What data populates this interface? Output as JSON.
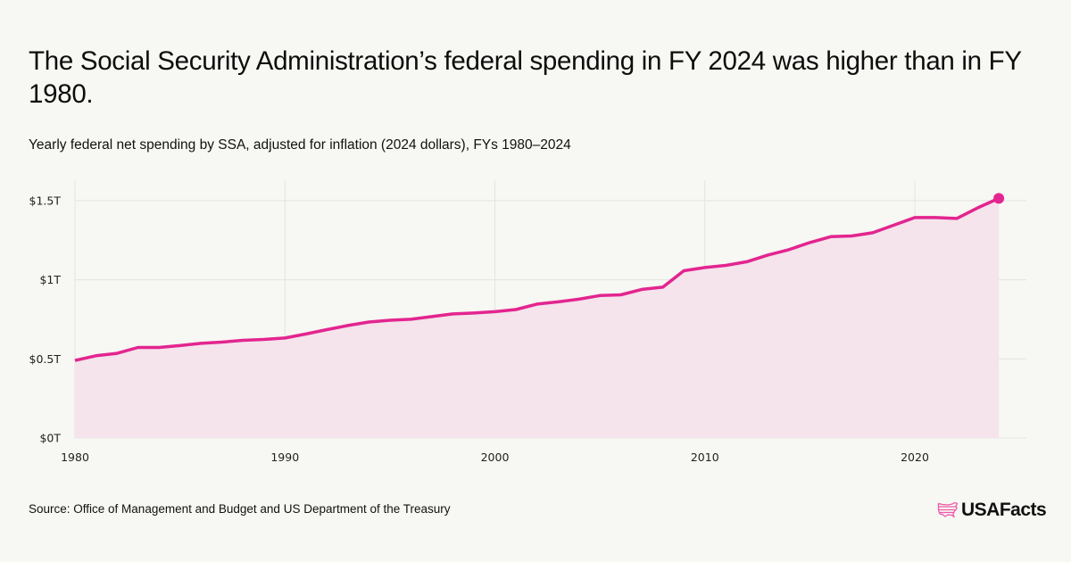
{
  "header": {
    "title": "The Social Security Administration’s federal spending in FY 2024 was higher than in FY 1980.",
    "subtitle": "Yearly federal net spending by SSA, adjusted for inflation (2024 dollars), FYs 1980–2024"
  },
  "footer": {
    "source": "Source: Office of Management and Budget and US Department of the Treasury",
    "brand": "USAFacts",
    "brand_icon": "us-map-flag-icon"
  },
  "colors": {
    "background": "#f7f7f3",
    "line": "#e3258f",
    "area": "#f5e4ec",
    "grid": "#e6e4e2",
    "brand_icon": "#ee5aa8"
  },
  "chart_data": {
    "type": "area",
    "title": "Yearly federal net spending by SSA, adjusted for inflation (2024 dollars), FYs 1980–2024",
    "xlabel": "",
    "ylabel": "",
    "x": [
      1980,
      1981,
      1982,
      1983,
      1984,
      1985,
      1986,
      1987,
      1988,
      1989,
      1990,
      1991,
      1992,
      1993,
      1994,
      1995,
      1996,
      1997,
      1998,
      1999,
      2000,
      2001,
      2002,
      2003,
      2004,
      2005,
      2006,
      2007,
      2008,
      2009,
      2010,
      2011,
      2012,
      2013,
      2014,
      2015,
      2016,
      2017,
      2018,
      2019,
      2020,
      2021,
      2022,
      2023,
      2024
    ],
    "series": [
      {
        "name": "SSA net spending (trillions, 2024 dollars)",
        "values": [
          0.49,
          0.52,
          0.535,
          0.572,
          0.572,
          0.584,
          0.598,
          0.606,
          0.617,
          0.623,
          0.632,
          0.657,
          0.685,
          0.711,
          0.733,
          0.744,
          0.75,
          0.767,
          0.784,
          0.79,
          0.798,
          0.812,
          0.846,
          0.86,
          0.877,
          0.9,
          0.905,
          0.939,
          0.953,
          1.057,
          1.077,
          1.091,
          1.114,
          1.156,
          1.19,
          1.235,
          1.272,
          1.277,
          1.297,
          1.345,
          1.393,
          1.393,
          1.387,
          1.455,
          1.514
        ]
      }
    ],
    "xlim": [
      1980,
      2025.3
    ],
    "ylim": [
      0,
      1.62
    ],
    "x_ticks": [
      1980,
      1990,
      2000,
      2010,
      2020
    ],
    "x_tick_labels": [
      "1980",
      "1990",
      "2000",
      "2010",
      "2020"
    ],
    "y_ticks": [
      0,
      0.5,
      1,
      1.5
    ],
    "y_tick_labels": [
      "$0T",
      "$0.5T",
      "$1T",
      "$1.5T"
    ],
    "highlight_last_point": true,
    "grid": true,
    "legend": "none"
  }
}
